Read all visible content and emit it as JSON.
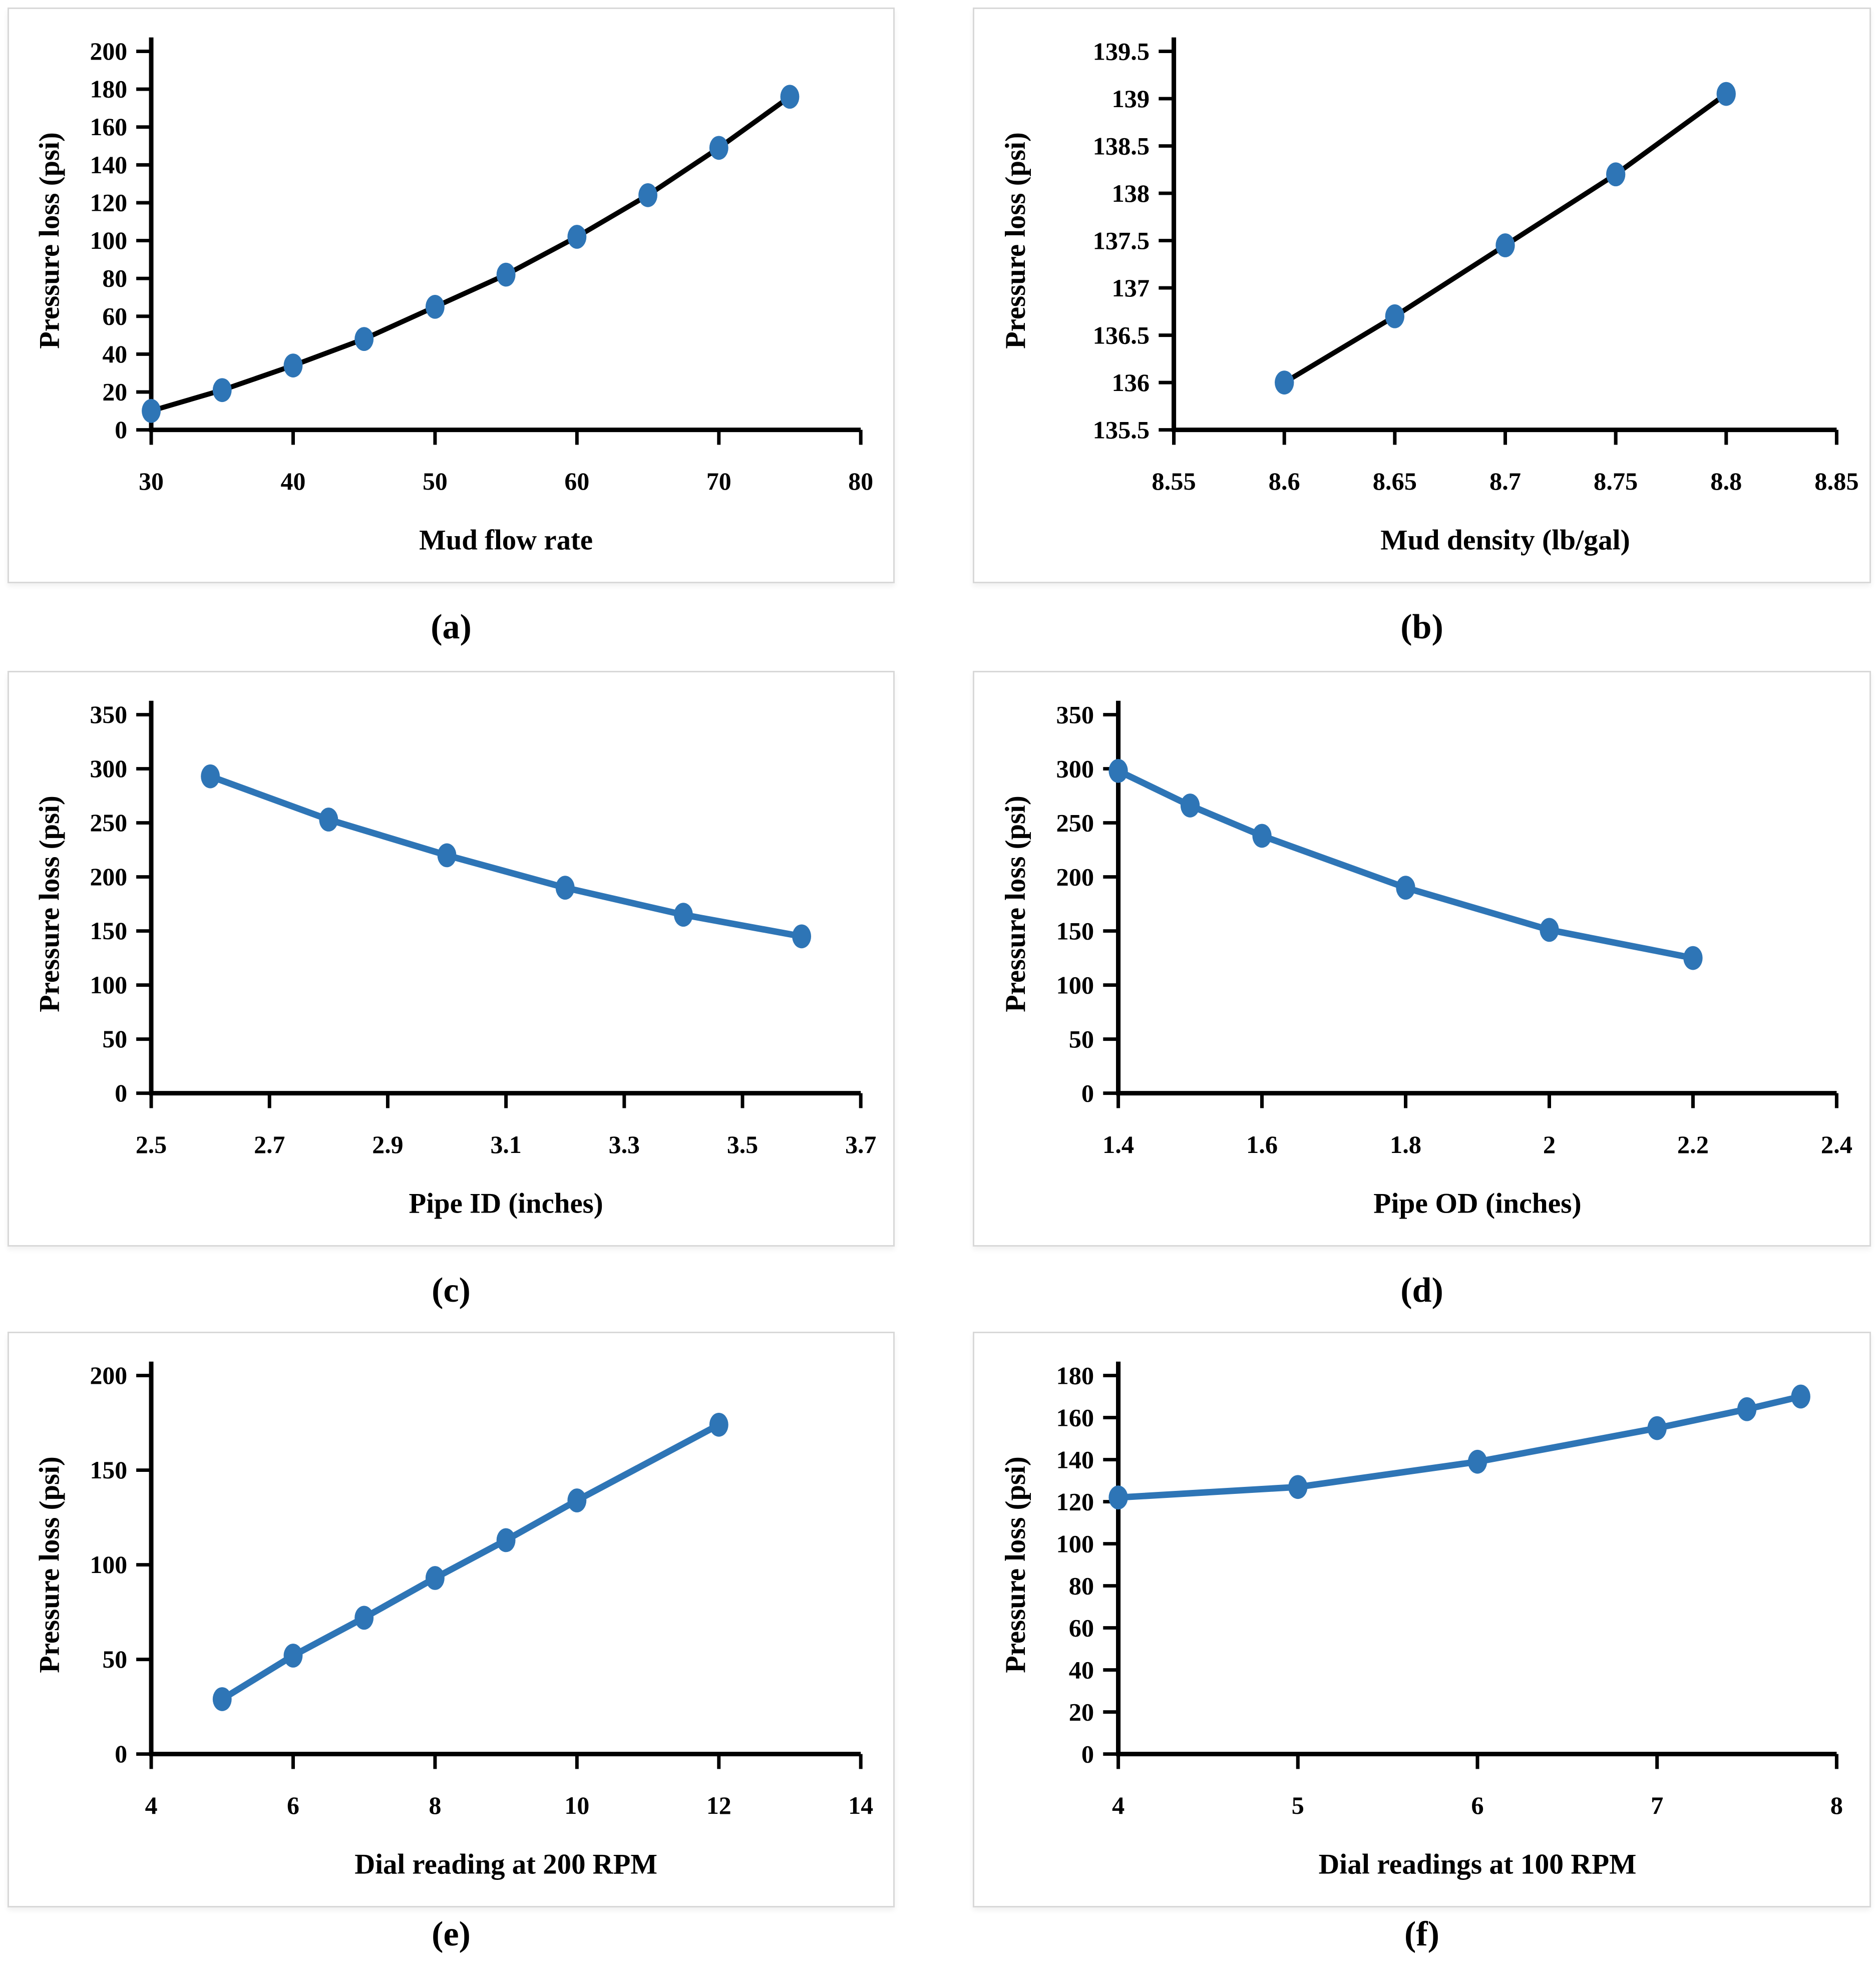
{
  "figure": {
    "type": "multi-panel-line-charts",
    "panel_count": 6
  },
  "colors": {
    "marker_blue": "#2E75B6",
    "line_blue": "#2E75B6",
    "line_black": "#000000",
    "panel_border": "#d8d8d8",
    "background": "#ffffff"
  },
  "chart_data": [
    {
      "type": "line",
      "caption": "(a)",
      "xlabel": "Mud flow rate",
      "ylabel": "Pressure loss (psi)",
      "x_range": [
        30,
        80
      ],
      "y_range": [
        0,
        200
      ],
      "x_ticks": [
        30,
        40,
        50,
        60,
        70,
        80
      ],
      "y_ticks": [
        0,
        20,
        40,
        60,
        80,
        100,
        120,
        140,
        160,
        180,
        200
      ],
      "x": [
        30,
        35,
        40,
        45,
        50,
        55,
        60,
        65,
        70,
        75
      ],
      "y": [
        10,
        21,
        34,
        48,
        65,
        82,
        102,
        124,
        149,
        176
      ],
      "line_color": "#000000",
      "marker_color": "#2E75B6",
      "line_width": 10,
      "legend": "none",
      "grid": "off"
    },
    {
      "type": "line",
      "caption": "(b)",
      "xlabel": "Mud density (lb/gal)",
      "ylabel": "Pressure loss (psi)",
      "x_range": [
        8.55,
        8.85
      ],
      "y_range": [
        135.5,
        139.5
      ],
      "x_ticks": [
        8.55,
        8.6,
        8.65,
        8.7,
        8.75,
        8.8,
        8.85
      ],
      "y_ticks": [
        135.5,
        136,
        136.5,
        137,
        137.5,
        138,
        138.5,
        139,
        139.5
      ],
      "x": [
        8.6,
        8.65,
        8.7,
        8.75,
        8.8
      ],
      "y": [
        136,
        136.7,
        137.45,
        138.2,
        139.05
      ],
      "line_color": "#000000",
      "marker_color": "#2E75B6",
      "line_width": 10,
      "legend": "none",
      "grid": "off"
    },
    {
      "type": "line",
      "caption": "(c)",
      "xlabel": "Pipe ID (inches)",
      "ylabel": "Pressure loss (psi)",
      "x_range": [
        2.5,
        3.7
      ],
      "y_range": [
        0,
        350
      ],
      "x_ticks": [
        2.5,
        2.7,
        2.9,
        3.1,
        3.3,
        3.5,
        3.7
      ],
      "y_ticks": [
        0,
        50,
        100,
        150,
        200,
        250,
        300,
        350
      ],
      "x": [
        2.6,
        2.8,
        3.0,
        3.2,
        3.4,
        3.6
      ],
      "y": [
        293,
        253,
        220,
        190,
        165,
        145
      ],
      "line_color": "#2E75B6",
      "marker_color": "#2E75B6",
      "line_width": 13,
      "legend": "none",
      "grid": "off"
    },
    {
      "type": "line",
      "caption": "(d)",
      "xlabel": "Pipe OD (inches)",
      "ylabel": "Pressure loss (psi)",
      "x_range": [
        1.4,
        2.4
      ],
      "y_range": [
        0,
        350
      ],
      "x_ticks": [
        1.4,
        1.6,
        1.8,
        2,
        2.2,
        2.4
      ],
      "y_ticks": [
        0,
        50,
        100,
        150,
        200,
        250,
        300,
        350
      ],
      "x": [
        1.4,
        1.5,
        1.6,
        1.8,
        2.0,
        2.2
      ],
      "y": [
        298,
        266,
        238,
        190,
        151,
        125
      ],
      "line_color": "#2E75B6",
      "marker_color": "#2E75B6",
      "line_width": 13,
      "legend": "none",
      "grid": "off"
    },
    {
      "type": "line",
      "caption": "(e)",
      "xlabel": "Dial reading at 200 RPM",
      "ylabel": "Pressure loss (psi)",
      "x_range": [
        4,
        14
      ],
      "y_range": [
        0,
        200
      ],
      "x_ticks": [
        4,
        6,
        8,
        10,
        12,
        14
      ],
      "y_ticks": [
        0,
        50,
        100,
        150,
        200
      ],
      "x": [
        5,
        6,
        7,
        8,
        9,
        10,
        12
      ],
      "y": [
        29,
        52,
        72,
        93,
        113,
        134,
        174
      ],
      "line_color": "#2E75B6",
      "marker_color": "#2E75B6",
      "line_width": 13,
      "legend": "none",
      "grid": "off"
    },
    {
      "type": "line",
      "caption": "(f)",
      "xlabel": "Dial readings at 100 RPM",
      "ylabel": "Pressure loss (psi)",
      "x_range": [
        4,
        8
      ],
      "y_range": [
        0,
        180
      ],
      "x_ticks": [
        4,
        5,
        6,
        7,
        8
      ],
      "y_ticks": [
        0,
        20,
        40,
        60,
        80,
        100,
        120,
        140,
        160,
        180
      ],
      "x": [
        4,
        5,
        6,
        7,
        7.5,
        7.8
      ],
      "y": [
        122,
        127,
        139,
        155,
        164,
        170
      ],
      "line_color": "#2E75B6",
      "marker_color": "#2E75B6",
      "line_width": 13,
      "legend": "none",
      "grid": "off"
    }
  ]
}
